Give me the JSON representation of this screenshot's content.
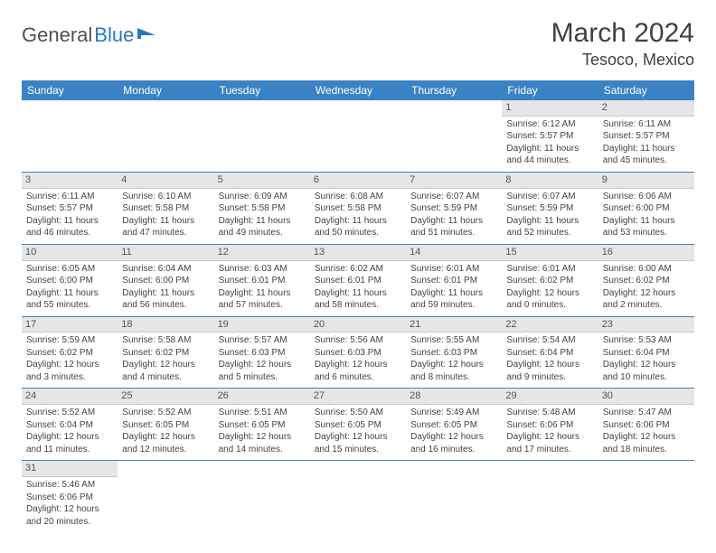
{
  "logo": {
    "part1": "General",
    "part2": "Blue"
  },
  "title": "March 2024",
  "location": "Tesoco, Mexico",
  "headers": [
    "Sunday",
    "Monday",
    "Tuesday",
    "Wednesday",
    "Thursday",
    "Friday",
    "Saturday"
  ],
  "colors": {
    "header_bg": "#3b82c4",
    "header_fg": "#ffffff",
    "daynum_bg": "#e6e6e6",
    "row_border": "#3b82c4"
  },
  "font": {
    "family": "Arial",
    "cell_size_pt": 10,
    "header_size_pt": 12,
    "title_size_pt": 30
  },
  "grid": {
    "rows": 6,
    "cols": 7,
    "first_weekday_index": 5,
    "days_in_month": 31
  },
  "days": {
    "1": {
      "sunrise": "6:12 AM",
      "sunset": "5:57 PM",
      "daylight": "11 hours and 44 minutes."
    },
    "2": {
      "sunrise": "6:11 AM",
      "sunset": "5:57 PM",
      "daylight": "11 hours and 45 minutes."
    },
    "3": {
      "sunrise": "6:11 AM",
      "sunset": "5:57 PM",
      "daylight": "11 hours and 46 minutes."
    },
    "4": {
      "sunrise": "6:10 AM",
      "sunset": "5:58 PM",
      "daylight": "11 hours and 47 minutes."
    },
    "5": {
      "sunrise": "6:09 AM",
      "sunset": "5:58 PM",
      "daylight": "11 hours and 49 minutes."
    },
    "6": {
      "sunrise": "6:08 AM",
      "sunset": "5:58 PM",
      "daylight": "11 hours and 50 minutes."
    },
    "7": {
      "sunrise": "6:07 AM",
      "sunset": "5:59 PM",
      "daylight": "11 hours and 51 minutes."
    },
    "8": {
      "sunrise": "6:07 AM",
      "sunset": "5:59 PM",
      "daylight": "11 hours and 52 minutes."
    },
    "9": {
      "sunrise": "6:06 AM",
      "sunset": "6:00 PM",
      "daylight": "11 hours and 53 minutes."
    },
    "10": {
      "sunrise": "6:05 AM",
      "sunset": "6:00 PM",
      "daylight": "11 hours and 55 minutes."
    },
    "11": {
      "sunrise": "6:04 AM",
      "sunset": "6:00 PM",
      "daylight": "11 hours and 56 minutes."
    },
    "12": {
      "sunrise": "6:03 AM",
      "sunset": "6:01 PM",
      "daylight": "11 hours and 57 minutes."
    },
    "13": {
      "sunrise": "6:02 AM",
      "sunset": "6:01 PM",
      "daylight": "11 hours and 58 minutes."
    },
    "14": {
      "sunrise": "6:01 AM",
      "sunset": "6:01 PM",
      "daylight": "11 hours and 59 minutes."
    },
    "15": {
      "sunrise": "6:01 AM",
      "sunset": "6:02 PM",
      "daylight": "12 hours and 0 minutes."
    },
    "16": {
      "sunrise": "6:00 AM",
      "sunset": "6:02 PM",
      "daylight": "12 hours and 2 minutes."
    },
    "17": {
      "sunrise": "5:59 AM",
      "sunset": "6:02 PM",
      "daylight": "12 hours and 3 minutes."
    },
    "18": {
      "sunrise": "5:58 AM",
      "sunset": "6:02 PM",
      "daylight": "12 hours and 4 minutes."
    },
    "19": {
      "sunrise": "5:57 AM",
      "sunset": "6:03 PM",
      "daylight": "12 hours and 5 minutes."
    },
    "20": {
      "sunrise": "5:56 AM",
      "sunset": "6:03 PM",
      "daylight": "12 hours and 6 minutes."
    },
    "21": {
      "sunrise": "5:55 AM",
      "sunset": "6:03 PM",
      "daylight": "12 hours and 8 minutes."
    },
    "22": {
      "sunrise": "5:54 AM",
      "sunset": "6:04 PM",
      "daylight": "12 hours and 9 minutes."
    },
    "23": {
      "sunrise": "5:53 AM",
      "sunset": "6:04 PM",
      "daylight": "12 hours and 10 minutes."
    },
    "24": {
      "sunrise": "5:52 AM",
      "sunset": "6:04 PM",
      "daylight": "12 hours and 11 minutes."
    },
    "25": {
      "sunrise": "5:52 AM",
      "sunset": "6:05 PM",
      "daylight": "12 hours and 12 minutes."
    },
    "26": {
      "sunrise": "5:51 AM",
      "sunset": "6:05 PM",
      "daylight": "12 hours and 14 minutes."
    },
    "27": {
      "sunrise": "5:50 AM",
      "sunset": "6:05 PM",
      "daylight": "12 hours and 15 minutes."
    },
    "28": {
      "sunrise": "5:49 AM",
      "sunset": "6:05 PM",
      "daylight": "12 hours and 16 minutes."
    },
    "29": {
      "sunrise": "5:48 AM",
      "sunset": "6:06 PM",
      "daylight": "12 hours and 17 minutes."
    },
    "30": {
      "sunrise": "5:47 AM",
      "sunset": "6:06 PM",
      "daylight": "12 hours and 18 minutes."
    },
    "31": {
      "sunrise": "5:46 AM",
      "sunset": "6:06 PM",
      "daylight": "12 hours and 20 minutes."
    }
  },
  "labels": {
    "sunrise": "Sunrise:",
    "sunset": "Sunset:",
    "daylight": "Daylight:"
  }
}
